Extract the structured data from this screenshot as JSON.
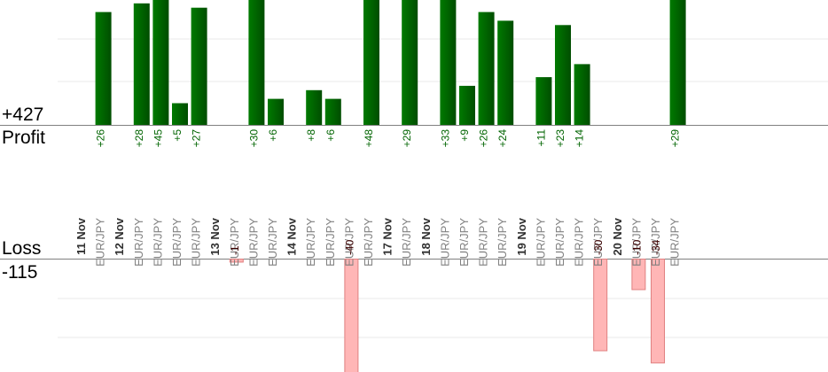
{
  "colors": {
    "profit_bar_light": "#007a00",
    "profit_bar_dark": "#004d00",
    "profit_text": "#006400",
    "loss_bar_fill": "#ffb6b6",
    "loss_bar_stroke": "#e08080",
    "loss_text": "#3d0000",
    "grid": "#e8e8e8",
    "axis": "#808080",
    "category_text": "#808080",
    "day_text": "#303030"
  },
  "labels": {
    "profit_total": "+427",
    "profit_title": "Profit",
    "loss_title": "Loss",
    "loss_total": "-115"
  },
  "chart_data": {
    "type": "bar",
    "profit_total": 427,
    "loss_total": -115,
    "days": [
      {
        "day": "11 Nov",
        "trades": [
          {
            "symbol": "EUR/JPY",
            "value": 26
          }
        ]
      },
      {
        "day": "12 Nov",
        "trades": [
          {
            "symbol": "EUR/JPY",
            "value": 28
          },
          {
            "symbol": "EUR/JPY",
            "value": 45
          },
          {
            "symbol": "EUR/JPY",
            "value": 5
          },
          {
            "symbol": "EUR/JPY",
            "value": 27
          }
        ]
      },
      {
        "day": "13 Nov",
        "trades": [
          {
            "symbol": "EUR/JPY",
            "value": -1
          },
          {
            "symbol": "EUR/JPY",
            "value": 30
          },
          {
            "symbol": "EUR/JPY",
            "value": 6
          }
        ]
      },
      {
        "day": "14 Nov",
        "trades": [
          {
            "symbol": "EUR/JPY",
            "value": 8
          },
          {
            "symbol": "EUR/JPY",
            "value": 6
          },
          {
            "symbol": "EUR/JPY",
            "value": -40
          },
          {
            "symbol": "EUR/JPY",
            "value": 48
          }
        ]
      },
      {
        "day": "17 Nov",
        "trades": [
          {
            "symbol": "EUR/JPY",
            "value": 29
          }
        ]
      },
      {
        "day": "18 Nov",
        "trades": [
          {
            "symbol": "EUR/JPY",
            "value": 33
          },
          {
            "symbol": "EUR/JPY",
            "value": 9
          },
          {
            "symbol": "EUR/JPY",
            "value": 26
          },
          {
            "symbol": "EUR/JPY",
            "value": 24
          }
        ]
      },
      {
        "day": "19 Nov",
        "trades": [
          {
            "symbol": "EUR/JPY",
            "value": 11
          },
          {
            "symbol": "EUR/JPY",
            "value": 23
          },
          {
            "symbol": "EUR/JPY",
            "value": 14
          },
          {
            "symbol": "EUR/JPY",
            "value": -30
          }
        ]
      },
      {
        "day": "20 Nov",
        "trades": [
          {
            "symbol": "EUR/JPY",
            "value": -10
          },
          {
            "symbol": "EUR/JPY",
            "value": -34
          },
          {
            "symbol": "EUR/JPY",
            "value": 29
          }
        ]
      }
    ]
  }
}
